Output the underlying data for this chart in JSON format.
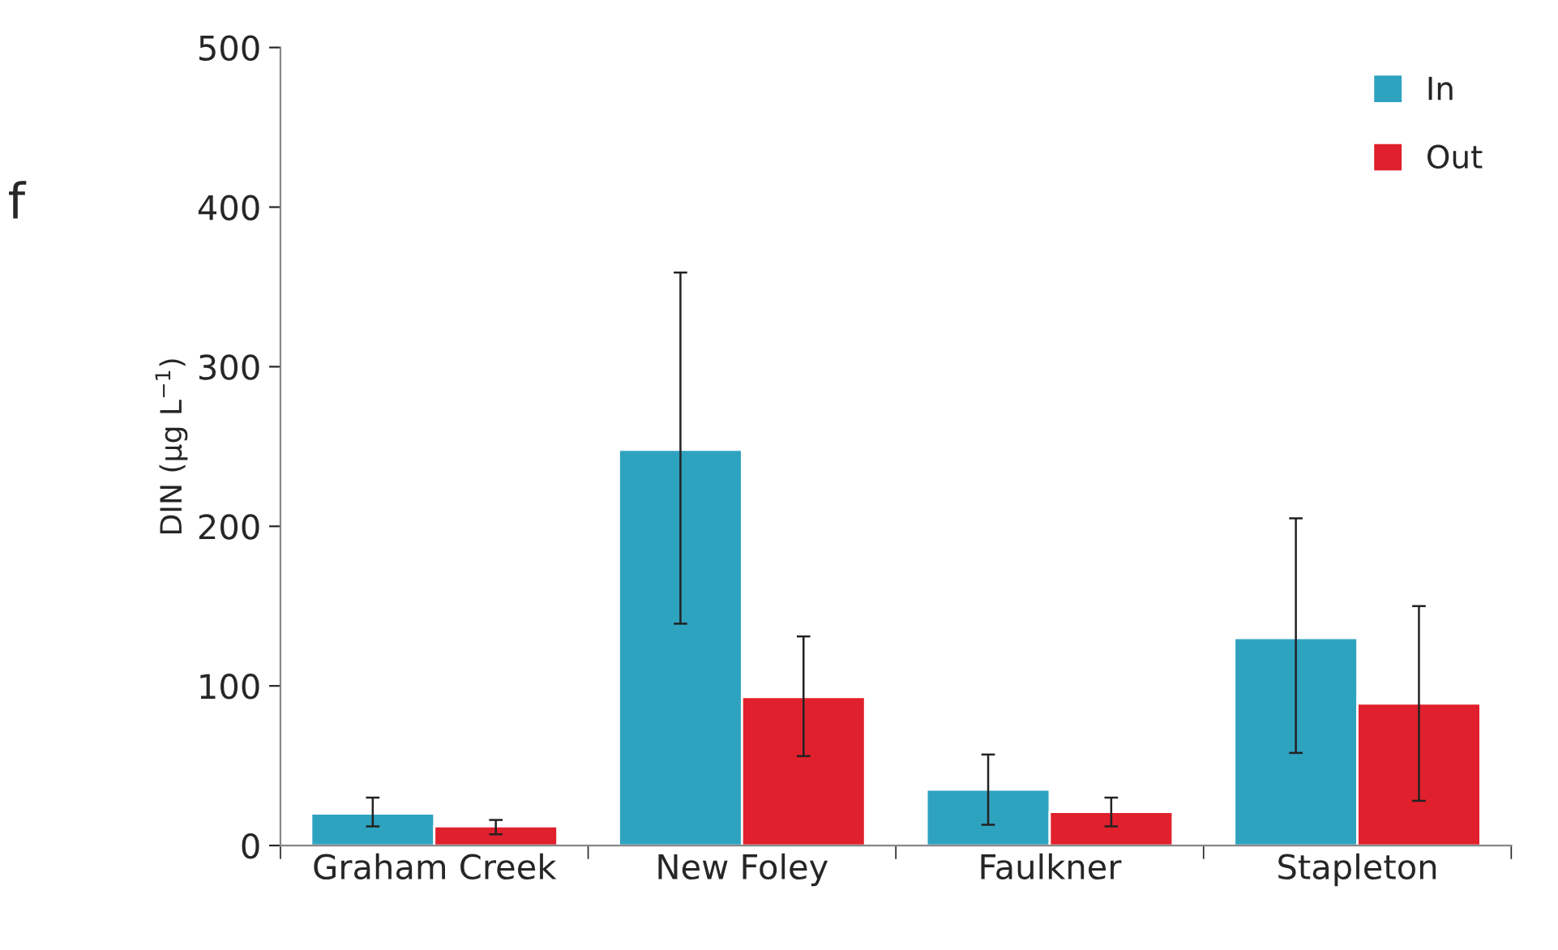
{
  "chart_data": {
    "type": "bar",
    "ylabel": "DIN (µg L$^{−1}$)",
    "categories": [
      "Graham Creek",
      "New Foley",
      "Faulkner",
      "Stapleton"
    ],
    "series": [
      {
        "name": "In",
        "color": "#2ea3c0",
        "values": [
          20,
          248,
          35,
          130
        ],
        "errors": [
          [
            12,
            30
          ],
          [
            139,
            359
          ],
          [
            13,
            57
          ],
          [
            58,
            205
          ]
        ]
      },
      {
        "name": "Out",
        "color": "#e0202c",
        "values": [
          12,
          93,
          21,
          89
        ],
        "errors": [
          [
            7,
            16
          ],
          [
            56,
            131
          ],
          [
            12,
            30
          ],
          [
            28,
            150
          ]
        ]
      }
    ],
    "ylim": [
      0,
      500
    ],
    "yticks": [
      0,
      100,
      200,
      300,
      400,
      500
    ],
    "grid": false,
    "legend": "top right",
    "annotations": [
      "f"
    ]
  }
}
